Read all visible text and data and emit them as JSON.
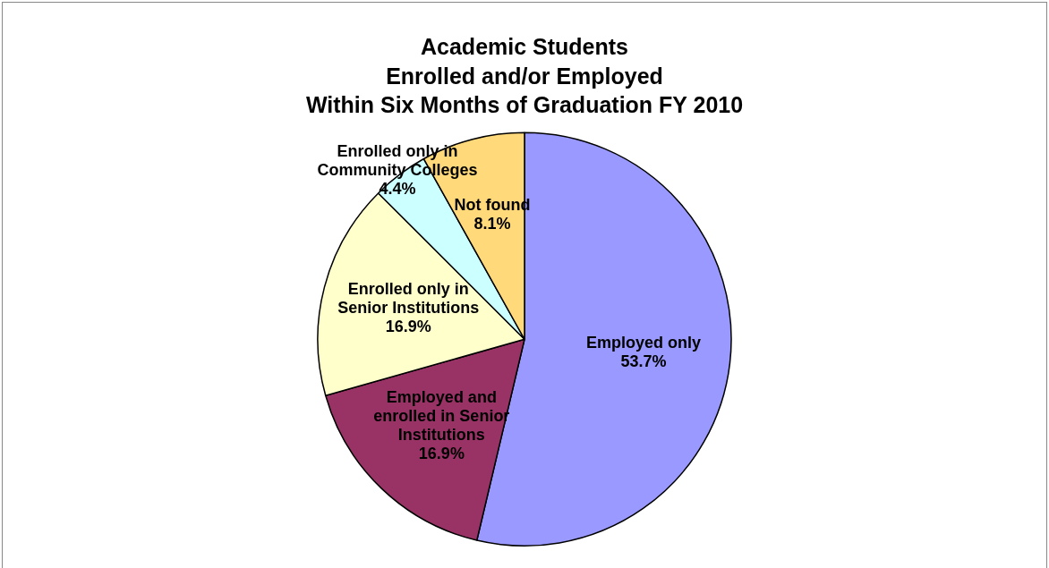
{
  "chart_data": {
    "type": "pie",
    "title": "Academic Students\nEnrolled and/or Employed\nWithin Six Months of Graduation FY 2010",
    "categories": [
      "Employed only",
      "Employed and enrolled in Senior Institutions",
      "Enrolled only in Senior Institutions",
      "Enrolled only in Community Colleges",
      "Not found"
    ],
    "values": [
      53.7,
      16.9,
      16.9,
      4.4,
      8.1
    ],
    "value_labels": [
      "53.7%",
      "16.9%",
      "16.9%",
      "4.4%",
      "8.1%"
    ],
    "colors": [
      "#9999ff",
      "#993366",
      "#ffffcc",
      "#ccffff",
      "#ffd97a"
    ],
    "legend": false
  }
}
